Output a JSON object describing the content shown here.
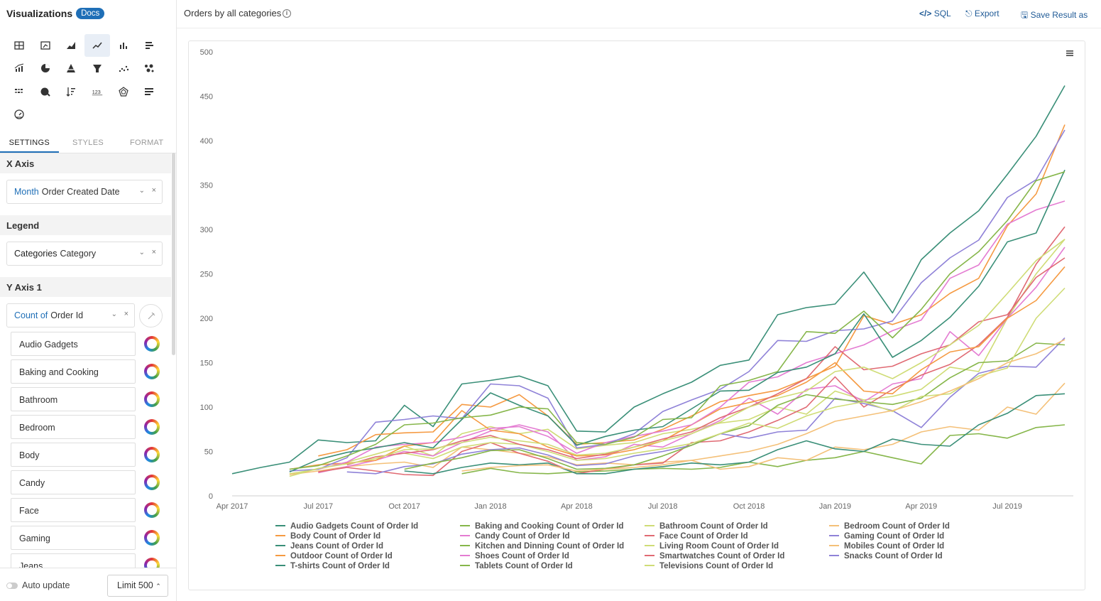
{
  "sidebar": {
    "title": "Visualizations",
    "docs_badge": "Docs",
    "tabs": [
      "SETTINGS",
      "STYLES",
      "FORMAT"
    ],
    "x_axis": {
      "heading": "X Axis",
      "qualifier": "Month",
      "field": "Order Created Date"
    },
    "legend": {
      "heading": "Legend",
      "qualifier": "Categories",
      "field": "Category"
    },
    "y_axis": {
      "heading": "Y Axis 1",
      "qualifier": "Count of",
      "field": "Order Id"
    },
    "categories": [
      "Audio Gadgets",
      "Baking and Cooking",
      "Bathroom",
      "Bedroom",
      "Body",
      "Candy",
      "Face",
      "Gaming",
      "Jeans"
    ],
    "auto_update": "Auto update",
    "limit": "Limit 500"
  },
  "header": {
    "title": "Orders by all categories",
    "actions": [
      "SQL",
      "Export",
      "Save Result as"
    ]
  },
  "chart_data": {
    "type": "line",
    "x": [
      "Apr 2017",
      "May 2017",
      "Jun 2017",
      "Jul 2017",
      "Aug 2017",
      "Sep 2017",
      "Oct 2017",
      "Nov 2017",
      "Dec 2017",
      "Jan 2018",
      "Feb 2018",
      "Mar 2018",
      "Apr 2018",
      "May 2018",
      "Jun 2018",
      "Jul 2018",
      "Aug 2018",
      "Sep 2018",
      "Oct 2018",
      "Nov 2018",
      "Dec 2018",
      "Jan 2019",
      "Feb 2019",
      "Mar 2019",
      "Apr 2019",
      "May 2019",
      "Jun 2019",
      "Jul 2019",
      "Aug 2019",
      "Sep 2019"
    ],
    "x_tick_labels": [
      "Apr 2017",
      "Jul 2017",
      "Oct 2017",
      "Jan 2018",
      "Apr 2018",
      "Jul 2018",
      "Oct 2018",
      "Jan 2019",
      "Apr 2019",
      "Jul 2019"
    ],
    "y_ticks": [
      0,
      50,
      100,
      150,
      200,
      250,
      300,
      350,
      400,
      450,
      500
    ],
    "ylim": [
      0,
      500
    ],
    "grid": false,
    "legend_position": "bottom",
    "series": [
      {
        "name": "Audio Gadgets Count of Order Id",
        "color": "#3a8f78",
        "values": [
          25,
          32,
          38,
          63,
          60,
          62,
          102,
          78,
          126,
          130,
          135,
          124,
          73,
          72,
          100,
          115,
          128,
          147,
          153,
          204,
          212,
          216,
          252,
          206,
          266,
          296,
          321,
          362,
          405,
          462
        ]
      },
      {
        "name": "Baking and Cooking Count of Order Id",
        "color": "#86b64a",
        "values": [
          null,
          null,
          null,
          null,
          null,
          null,
          null,
          null,
          25,
          31,
          26,
          25,
          27,
          28,
          30,
          31,
          30,
          32,
          38,
          33,
          40,
          43,
          50,
          43,
          36,
          68,
          70,
          65,
          77,
          80
        ]
      },
      {
        "name": "Bathroom Count of Order Id",
        "color": "#cfdc76",
        "values": [
          null,
          null,
          25,
          30,
          38,
          47,
          56,
          45,
          70,
          78,
          70,
          75,
          53,
          57,
          60,
          70,
          75,
          82,
          86,
          100,
          92,
          118,
          108,
          112,
          120,
          145,
          140,
          200,
          250,
          289
        ]
      },
      {
        "name": "Bedroom Count of Order Id",
        "color": "#f4c078",
        "values": [
          null,
          null,
          24,
          28,
          33,
          36,
          38,
          32,
          55,
          52,
          48,
          44,
          35,
          37,
          35,
          38,
          40,
          30,
          33,
          43,
          40,
          55,
          52,
          58,
          72,
          78,
          74,
          100,
          92,
          127
        ]
      },
      {
        "name": "Body Count of Order Id",
        "color": "#f59a42",
        "values": [
          null,
          null,
          null,
          45,
          52,
          69,
          71,
          72,
          103,
          100,
          114,
          90,
          58,
          60,
          63,
          75,
          90,
          106,
          113,
          119,
          132,
          146,
          203,
          193,
          204,
          228,
          245,
          304,
          340,
          418
        ]
      },
      {
        "name": "Candy Count of Order Id",
        "color": "#e47cd2",
        "values": [
          null,
          null,
          null,
          26,
          33,
          40,
          50,
          45,
          60,
          73,
          80,
          72,
          40,
          44,
          58,
          55,
          70,
          85,
          110,
          92,
          120,
          124,
          106,
          126,
          132,
          185,
          158,
          200,
          235,
          280
        ]
      },
      {
        "name": "Face Count of Order Id",
        "color": "#e06a73",
        "values": [
          null,
          null,
          null,
          27,
          32,
          28,
          24,
          23,
          50,
          60,
          48,
          39,
          25,
          30,
          35,
          37,
          60,
          62,
          72,
          85,
          100,
          134,
          100,
          120,
          136,
          148,
          170,
          201,
          261,
          303
        ]
      },
      {
        "name": "Gaming Count of Order Id",
        "color": "#8f82d8",
        "values": [
          null,
          null,
          null,
          null,
          27,
          25,
          33,
          36,
          47,
          52,
          54,
          46,
          34,
          36,
          45,
          50,
          57,
          70,
          65,
          72,
          74,
          110,
          104,
          96,
          77,
          111,
          138,
          146,
          145,
          178
        ]
      },
      {
        "name": "Jeans Count of Order Id",
        "color": "#3a8f78",
        "values": [
          null,
          null,
          null,
          null,
          null,
          null,
          28,
          25,
          32,
          37,
          35,
          37,
          25,
          25,
          30,
          33,
          37,
          35,
          38,
          52,
          62,
          53,
          50,
          64,
          58,
          56,
          80,
          93,
          113,
          115
        ]
      },
      {
        "name": "Kitchen and Dinning Count of Order Id",
        "color": "#86b64a",
        "values": [
          null,
          null,
          null,
          null,
          null,
          null,
          30,
          37,
          43,
          51,
          52,
          42,
          30,
          31,
          35,
          45,
          57,
          70,
          79,
          102,
          114,
          109,
          106,
          103,
          110,
          133,
          150,
          152,
          172,
          170
        ]
      },
      {
        "name": "Living Room Count of Order Id",
        "color": "#cfdc76",
        "values": [
          null,
          null,
          null,
          null,
          null,
          null,
          48,
          42,
          55,
          60,
          58,
          50,
          40,
          42,
          48,
          53,
          59,
          70,
          82,
          76,
          90,
          100,
          106,
          95,
          112,
          115,
          135,
          144,
          200,
          234
        ]
      },
      {
        "name": "Mobiles Count of Order Id",
        "color": "#f4c078",
        "values": [
          null,
          null,
          null,
          null,
          null,
          null,
          null,
          null,
          28,
          32,
          34,
          35,
          28,
          30,
          32,
          35,
          40,
          45,
          50,
          58,
          70,
          84,
          90,
          96,
          106,
          118,
          132,
          150,
          160,
          176
        ]
      },
      {
        "name": "Outdoor Count of Order Id",
        "color": "#f59a42",
        "values": [
          null,
          null,
          30,
          35,
          37,
          40,
          56,
          60,
          96,
          74,
          70,
          55,
          45,
          46,
          52,
          62,
          80,
          98,
          105,
          113,
          128,
          150,
          118,
          115,
          142,
          162,
          168,
          200,
          220,
          258
        ]
      },
      {
        "name": "Shoes Count of Order Id",
        "color": "#e47cd2",
        "values": [
          null,
          null,
          null,
          30,
          38,
          55,
          58,
          60,
          66,
          76,
          78,
          67,
          48,
          60,
          67,
          73,
          80,
          100,
          128,
          134,
          150,
          160,
          170,
          186,
          198,
          245,
          260,
          306,
          322,
          332
        ]
      },
      {
        "name": "Smartwatches Count of Order Id",
        "color": "#e06a73",
        "values": [
          null,
          null,
          null,
          null,
          35,
          44,
          48,
          52,
          62,
          68,
          58,
          52,
          42,
          47,
          55,
          64,
          72,
          88,
          100,
          115,
          132,
          168,
          142,
          146,
          160,
          170,
          196,
          204,
          246,
          268
        ]
      },
      {
        "name": "Snacks Count of Order Id",
        "color": "#8f82d8",
        "values": [
          null,
          null,
          28,
          30,
          43,
          83,
          86,
          90,
          87,
          126,
          124,
          110,
          54,
          58,
          70,
          95,
          108,
          120,
          140,
          175,
          174,
          186,
          188,
          197,
          240,
          268,
          288,
          336,
          356,
          412
        ]
      },
      {
        "name": "T-shirts Count of Order Id",
        "color": "#3a8f78",
        "values": [
          null,
          null,
          27,
          41,
          49,
          54,
          60,
          54,
          86,
          116,
          102,
          90,
          57,
          67,
          74,
          78,
          98,
          118,
          119,
          139,
          145,
          160,
          205,
          156,
          175,
          201,
          236,
          286,
          296,
          367
        ]
      },
      {
        "name": "Tablets Count of Order Id",
        "color": "#86b64a",
        "values": [
          null,
          null,
          30,
          34,
          45,
          58,
          80,
          82,
          88,
          91,
          100,
          98,
          60,
          58,
          66,
          86,
          88,
          124,
          130,
          140,
          185,
          183,
          208,
          178,
          210,
          250,
          275,
          310,
          355,
          365
        ]
      },
      {
        "name": "Televisions Count of Order Id",
        "color": "#cfdc76",
        "values": [
          null,
          null,
          22,
          31,
          36,
          42,
          52,
          53,
          60,
          66,
          62,
          58,
          46,
          48,
          55,
          62,
          70,
          83,
          100,
          110,
          118,
          140,
          145,
          132,
          150,
          170,
          192,
          228,
          265,
          289
        ]
      }
    ]
  }
}
